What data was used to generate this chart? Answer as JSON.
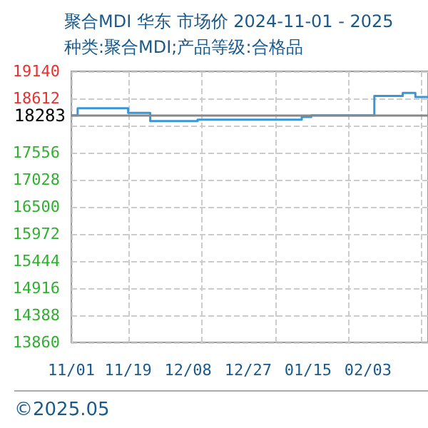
{
  "chart_data": {
    "type": "step",
    "title": "聚合MDI 华东 市场价 2024-11-01 - 2025",
    "subtitle": "种类:聚合MDI;产品等级:合格品",
    "x": [
      "2024-11-01",
      "2024-11-03",
      "2024-11-19",
      "2024-11-26",
      "2024-12-11",
      "2025-01-13",
      "2025-01-16",
      "2025-02-05",
      "2025-02-14",
      "2025-02-18",
      "2025-02-22"
    ],
    "series": [
      {
        "color": "#3a96d6",
        "values": [
          18283,
          18420,
          18330,
          18170,
          18200,
          18250,
          18283,
          18660,
          18720,
          18640,
          18640
        ]
      }
    ],
    "xlim": [
      "2024-11-01",
      "2025-02-22"
    ],
    "xticks": [
      {
        "value": "2024-11-01",
        "label": "11/01"
      },
      {
        "value": "2024-11-19",
        "label": "11/19"
      },
      {
        "value": "2024-12-08",
        "label": "12/08"
      },
      {
        "value": "2024-12-27",
        "label": "12/27"
      },
      {
        "value": "2025-01-15",
        "label": "01/15"
      },
      {
        "value": "2025-02-03",
        "label": "02/03"
      }
    ],
    "ylim": [
      13860,
      19140
    ],
    "yticks": [
      13860,
      14388,
      14916,
      15444,
      15972,
      16500,
      17028,
      17556,
      {
        "value": 18084,
        "label": null
      },
      18612,
      19140
    ],
    "ref_lines": [
      {
        "axis": "y",
        "value": 18283,
        "label": "18283",
        "color": "#888888"
      }
    ],
    "grid": true,
    "marker": "none",
    "line_style": "solid",
    "annotations": [
      "©2025.05"
    ]
  }
}
